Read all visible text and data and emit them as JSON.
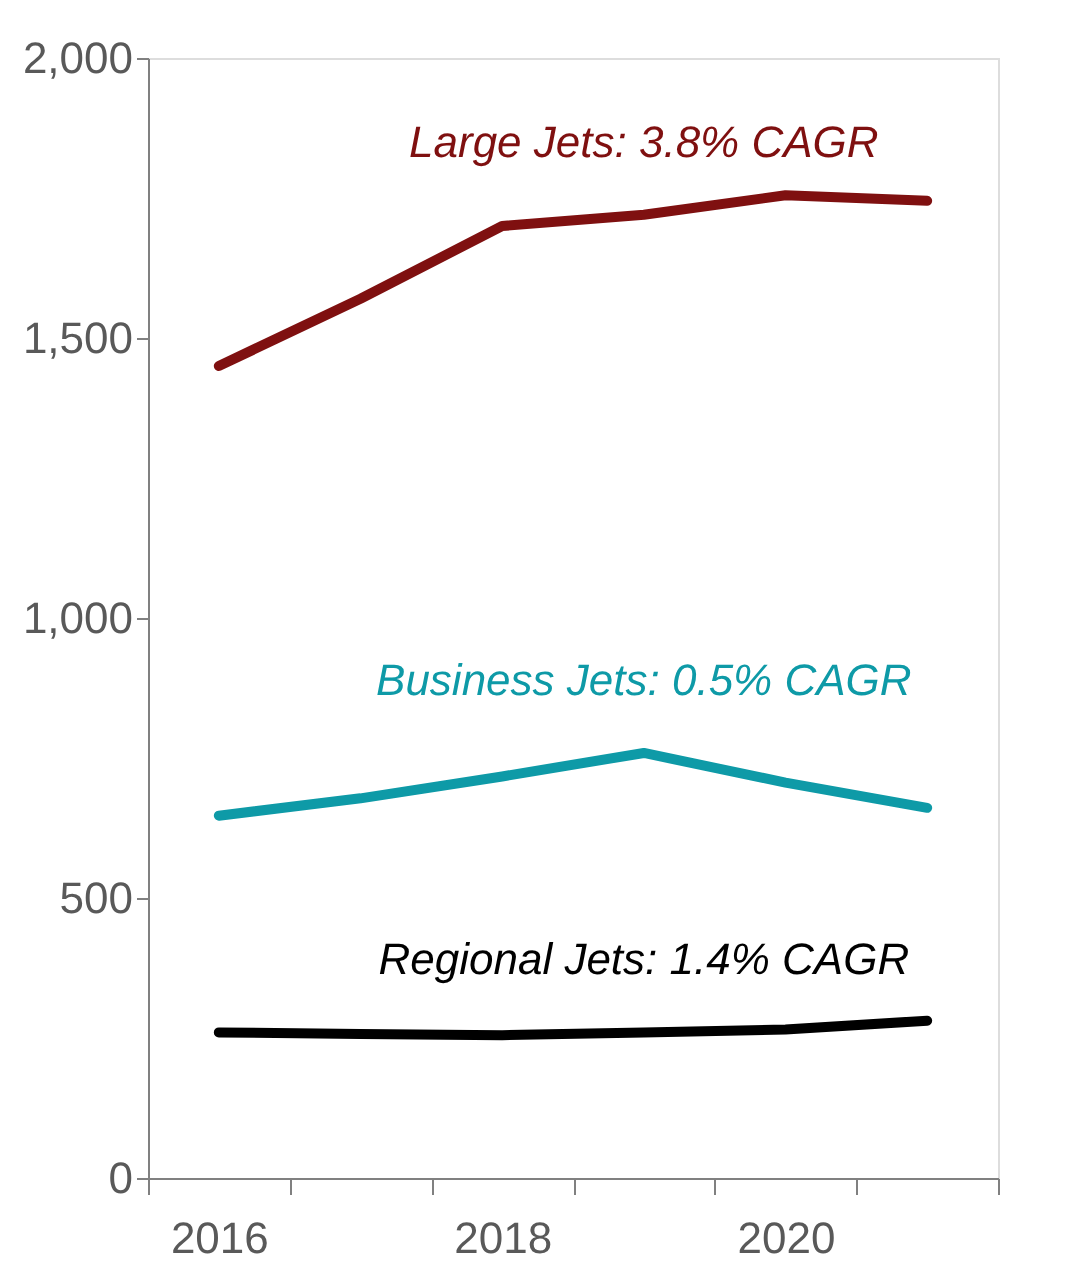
{
  "chart_data": {
    "type": "line",
    "categories": [
      "2016",
      null,
      "2018",
      null,
      "2020",
      null
    ],
    "series": [
      {
        "name": "Large Jets: 3.8% CAGR",
        "color": "#7f1010",
        "values": [
          1450,
          1570,
          1700,
          1720,
          1755,
          1745
        ]
      },
      {
        "name": "Business Jets: 0.5% CAGR",
        "color": "#0e9aa7",
        "values": [
          647,
          678,
          717,
          759,
          706,
          661
        ]
      },
      {
        "name": "Regional Jets: 1.4% CAGR",
        "color": "#000000",
        "values": [
          260,
          257,
          255,
          260,
          265,
          281
        ]
      }
    ],
    "ylim": [
      0,
      2000
    ],
    "yticks": [
      {
        "value": 0,
        "label": "0"
      },
      {
        "value": 500,
        "label": "500"
      },
      {
        "value": 1000,
        "label": "1,000"
      },
      {
        "value": 1500,
        "label": "1,500"
      },
      {
        "value": 2000,
        "label": "2,000"
      }
    ],
    "grid": false,
    "legend": false,
    "marker": "none",
    "line_style": "solid"
  }
}
